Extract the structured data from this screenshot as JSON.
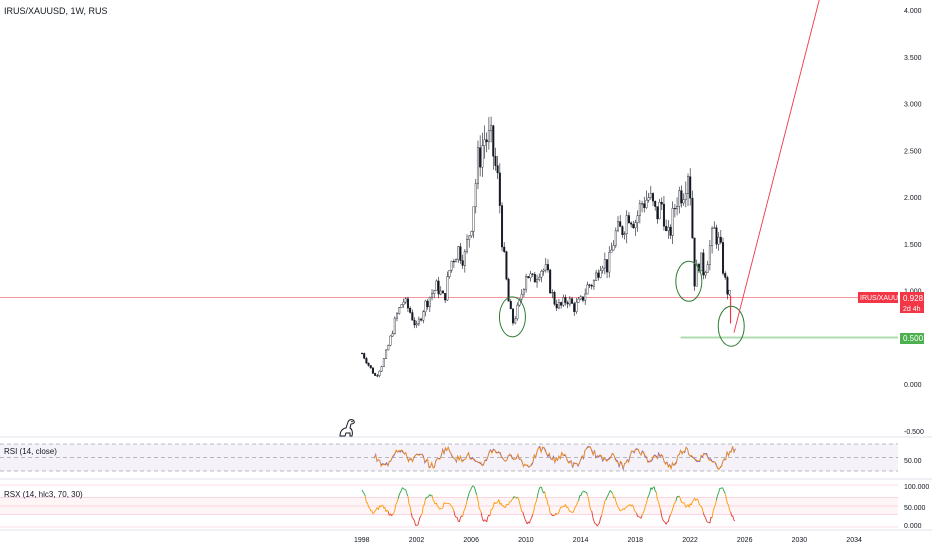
{
  "header": {
    "symbol_label": "IRUS/XAUUSD, 1W, RUS"
  },
  "price_tag": {
    "symbol": "IRUS/XAUUSD",
    "value": "0.928",
    "countdown": "2d 4h",
    "color": "#f23645"
  },
  "support_tag": {
    "value": "0.500",
    "color": "#4caf50"
  },
  "rsi": {
    "label": "RSI (14, close)",
    "ticks": [
      "50.00"
    ]
  },
  "rsx": {
    "label": "RSX (14, hlc3, 70, 30)",
    "ticks": [
      "100.000",
      "50.000",
      "0.000"
    ]
  },
  "chart_data": {
    "type": "candlestick",
    "title": "IRUS/XAUUSD, 1W, RUS",
    "x_ticks": [
      "1998",
      "2002",
      "2006",
      "2010",
      "2014",
      "2018",
      "2022",
      "2026",
      "2030",
      "2034"
    ],
    "y_ticks": [
      "4.000",
      "3.500",
      "3.000",
      "2.500",
      "2.000",
      "1.500",
      "1.000",
      "0.500",
      "0.000",
      "-0.500"
    ],
    "ylim": [
      -0.5,
      4.0
    ],
    "xlim": [
      1998,
      2036
    ],
    "price_series": {
      "name": "IRUS/XAUUSD",
      "points": [
        [
          1998.0,
          0.33
        ],
        [
          1998.5,
          0.2
        ],
        [
          1999.0,
          0.08
        ],
        [
          1999.5,
          0.22
        ],
        [
          2000.0,
          0.45
        ],
        [
          2000.5,
          0.72
        ],
        [
          2001.0,
          0.9
        ],
        [
          2001.5,
          0.78
        ],
        [
          2002.0,
          0.6
        ],
        [
          2002.5,
          0.82
        ],
        [
          2003.0,
          0.95
        ],
        [
          2003.5,
          1.05
        ],
        [
          2004.0,
          0.9
        ],
        [
          2004.5,
          1.3
        ],
        [
          2005.0,
          1.45
        ],
        [
          2005.5,
          1.35
        ],
        [
          2006.0,
          1.75
        ],
        [
          2006.5,
          2.4
        ],
        [
          2007.0,
          2.65
        ],
        [
          2007.5,
          2.55
        ],
        [
          2008.0,
          2.1
        ],
        [
          2008.3,
          1.45
        ],
        [
          2008.7,
          0.9
        ],
        [
          2009.0,
          0.65
        ],
        [
          2009.5,
          0.85
        ],
        [
          2010.0,
          1.2
        ],
        [
          2010.5,
          1.1
        ],
        [
          2011.0,
          1.25
        ],
        [
          2011.5,
          1.2
        ],
        [
          2012.0,
          0.9
        ],
        [
          2012.5,
          0.82
        ],
        [
          2013.0,
          0.92
        ],
        [
          2013.5,
          0.82
        ],
        [
          2014.0,
          0.88
        ],
        [
          2014.5,
          1.05
        ],
        [
          2015.0,
          1.1
        ],
        [
          2015.5,
          1.35
        ],
        [
          2016.0,
          1.25
        ],
        [
          2016.5,
          1.6
        ],
        [
          2017.0,
          1.65
        ],
        [
          2017.5,
          1.85
        ],
        [
          2018.0,
          1.75
        ],
        [
          2018.5,
          1.95
        ],
        [
          2019.0,
          2.0
        ],
        [
          2019.5,
          1.8
        ],
        [
          2020.0,
          1.95
        ],
        [
          2020.3,
          1.5
        ],
        [
          2020.7,
          1.75
        ],
        [
          2021.0,
          2.0
        ],
        [
          2021.5,
          2.1
        ],
        [
          2021.9,
          2.35
        ],
        [
          2022.1,
          1.8
        ],
        [
          2022.3,
          1.1
        ],
        [
          2022.7,
          1.35
        ],
        [
          2023.0,
          1.2
        ],
        [
          2023.5,
          1.5
        ],
        [
          2023.8,
          1.65
        ],
        [
          2024.2,
          1.45
        ],
        [
          2024.6,
          1.05
        ],
        [
          2024.9,
          0.93
        ]
      ]
    },
    "projection": {
      "from": [
        2025.2,
        0.55
      ],
      "to": [
        2031.6,
        4.2
      ]
    },
    "circled_lows": [
      [
        2009.0,
        0.72
      ],
      [
        2021.9,
        1.1
      ],
      [
        2025.0,
        0.62
      ]
    ],
    "horizontal_levels": [
      {
        "value": 0.928,
        "color": "#f23645"
      },
      {
        "value": 0.5,
        "color": "#4caf50",
        "from": 2021.3
      }
    ],
    "rsi_levels": [
      70,
      50,
      30
    ],
    "rsx_levels": [
      100,
      70,
      50,
      30,
      0
    ],
    "indicator_x_range": [
      1998.0,
      2025.3
    ]
  }
}
